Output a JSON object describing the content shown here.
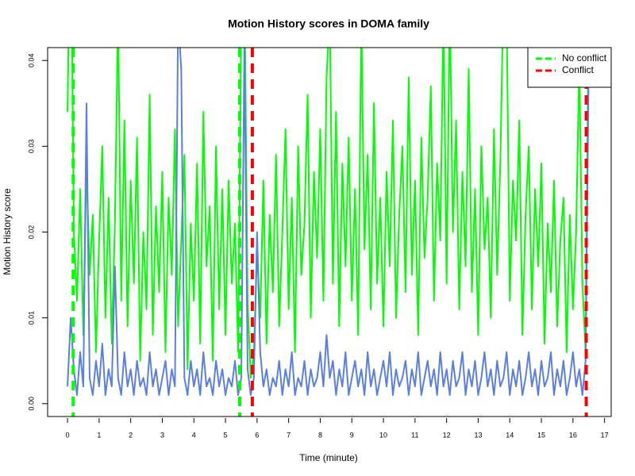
{
  "chart_data": {
    "type": "line",
    "title": "Motion History scores in DOMA family",
    "xlabel": "Time (minute)",
    "ylabel": "Motion History score",
    "x": [
      0,
      0.1,
      0.2,
      0.3,
      0.4,
      0.5,
      0.6,
      0.7,
      0.8,
      0.9,
      1,
      1.1,
      1.2,
      1.3,
      1.4,
      1.5,
      1.6,
      1.7,
      1.8,
      1.9,
      2,
      2.1,
      2.2,
      2.3,
      2.4,
      2.5,
      2.6,
      2.7,
      2.8,
      2.9,
      3,
      3.1,
      3.2,
      3.3,
      3.4,
      3.5,
      3.6,
      3.7,
      3.8,
      3.9,
      4,
      4.1,
      4.2,
      4.3,
      4.4,
      4.5,
      4.6,
      4.7,
      4.8,
      4.9,
      5,
      5.1,
      5.2,
      5.3,
      5.4,
      5.5,
      5.6,
      5.7,
      5.8,
      5.9,
      6,
      6.1,
      6.2,
      6.3,
      6.4,
      6.5,
      6.6,
      6.7,
      6.8,
      6.9,
      7,
      7.1,
      7.2,
      7.3,
      7.4,
      7.5,
      7.6,
      7.7,
      7.8,
      7.9,
      8,
      8.1,
      8.2,
      8.3,
      8.4,
      8.5,
      8.6,
      8.7,
      8.8,
      8.9,
      9,
      9.1,
      9.2,
      9.3,
      9.4,
      9.5,
      9.6,
      9.7,
      9.8,
      9.9,
      10,
      10.1,
      10.2,
      10.3,
      10.4,
      10.5,
      10.6,
      10.7,
      10.8,
      10.9,
      11,
      11.1,
      11.2,
      11.3,
      11.4,
      11.5,
      11.6,
      11.7,
      11.8,
      11.9,
      12,
      12.1,
      12.2,
      12.3,
      12.4,
      12.5,
      12.6,
      12.7,
      12.8,
      12.9,
      13,
      13.1,
      13.2,
      13.3,
      13.4,
      13.5,
      13.6,
      13.7,
      13.8,
      13.9,
      14,
      14.1,
      14.2,
      14.3,
      14.4,
      14.5,
      14.6,
      14.7,
      14.8,
      14.9,
      15,
      15.1,
      15.2,
      15.3,
      15.4,
      15.5,
      15.6,
      15.7,
      15.8,
      15.9,
      16,
      16.1,
      16.2,
      16.3,
      16.4,
      16.5
    ],
    "series": [
      {
        "color": "#00ff00",
        "values": [
          0.034,
          0.06,
          0.02,
          0.012,
          0.025,
          0.008,
          0.028,
          0.015,
          0.022,
          0.006,
          0.019,
          0.03,
          0.01,
          0.024,
          0.007,
          0.021,
          0.046,
          0.012,
          0.033,
          0.009,
          0.026,
          0.014,
          0.031,
          0.005,
          0.02,
          0.011,
          0.036,
          0.008,
          0.023,
          0.013,
          0.027,
          0.006,
          0.024,
          0.015,
          0.032,
          0.009,
          0.019,
          0.029,
          0.004,
          0.021,
          0.012,
          0.028,
          0.007,
          0.034,
          0.016,
          0.023,
          0.005,
          0.03,
          0.011,
          0.025,
          0.008,
          0.026,
          0.014,
          0.021,
          0.006,
          0.045,
          0.05,
          0.012,
          0.003,
          0.006,
          0.018,
          0.01,
          0.026,
          0.007,
          0.022,
          0.013,
          0.029,
          0.009,
          0.02,
          0.032,
          0.011,
          0.024,
          0.006,
          0.03,
          0.015,
          0.021,
          0.036,
          0.01,
          0.027,
          0.017,
          0.032,
          0.012,
          0.038,
          0.046,
          0.014,
          0.034,
          0.009,
          0.028,
          0.016,
          0.031,
          0.012,
          0.025,
          0.008,
          0.045,
          0.018,
          0.029,
          0.011,
          0.035,
          0.014,
          0.024,
          0.009,
          0.027,
          0.016,
          0.033,
          0.01,
          0.022,
          0.03,
          0.013,
          0.038,
          0.015,
          0.026,
          0.008,
          0.031,
          0.017,
          0.024,
          0.037,
          0.012,
          0.028,
          0.019,
          0.046,
          0.014,
          0.047,
          0.02,
          0.033,
          0.011,
          0.027,
          0.016,
          0.039,
          0.013,
          0.025,
          0.008,
          0.03,
          0.018,
          0.024,
          0.01,
          0.032,
          0.015,
          0.028,
          0.048,
          0.046,
          0.012,
          0.026,
          0.019,
          0.033,
          0.008,
          0.022,
          0.03,
          0.011,
          0.025,
          0.016,
          0.028,
          0.007,
          0.021,
          0.013,
          0.026,
          0.009,
          0.019,
          0.024,
          0.006,
          0.022,
          0.011,
          0.02,
          0.04,
          0.014,
          0.006,
          0.048
        ]
      },
      {
        "color": "#5b7fe0",
        "values": [
          0.002,
          0.01,
          0.004,
          0.001,
          0.006,
          0.002,
          0.035,
          0.003,
          0.001,
          0.005,
          0.002,
          0.007,
          0.001,
          0.004,
          0.002,
          0.016,
          0.003,
          0.001,
          0.006,
          0.002,
          0.004,
          0.001,
          0.005,
          0.002,
          0.003,
          0.001,
          0.006,
          0.002,
          0.004,
          0.001,
          0.003,
          0.005,
          0.001,
          0.004,
          0.002,
          0.045,
          0.039,
          0.003,
          0.001,
          0.005,
          0.002,
          0.004,
          0.001,
          0.006,
          0.002,
          0.003,
          0.001,
          0.005,
          0.002,
          0.004,
          0.001,
          0.003,
          0.002,
          0.005,
          0.001,
          0.003,
          0.042,
          0.004,
          0.001,
          0.003,
          0.02,
          0.006,
          0.002,
          0.004,
          0.001,
          0.003,
          0.002,
          0.005,
          0.001,
          0.004,
          0.002,
          0.006,
          0.001,
          0.003,
          0.002,
          0.005,
          0.001,
          0.004,
          0.002,
          0.003,
          0.006,
          0.002,
          0.008,
          0.003,
          0.005,
          0.001,
          0.004,
          0.002,
          0.006,
          0.001,
          0.003,
          0.005,
          0.002,
          0.004,
          0.001,
          0.006,
          0.002,
          0.004,
          0.001,
          0.003,
          0.005,
          0.002,
          0.006,
          0.001,
          0.004,
          0.002,
          0.003,
          0.005,
          0.001,
          0.004,
          0.002,
          0.006,
          0.001,
          0.003,
          0.005,
          0.002,
          0.004,
          0.001,
          0.006,
          0.002,
          0.004,
          0.001,
          0.005,
          0.002,
          0.003,
          0.006,
          0.001,
          0.004,
          0.002,
          0.005,
          0.001,
          0.003,
          0.006,
          0.002,
          0.004,
          0.001,
          0.005,
          0.002,
          0.003,
          0.006,
          0.001,
          0.004,
          0.002,
          0.005,
          0.001,
          0.003,
          0.006,
          0.002,
          0.004,
          0.001,
          0.005,
          0.002,
          0.003,
          0.006,
          0.001,
          0.004,
          0.002,
          0.005,
          0.001,
          0.003,
          0.006,
          0.002,
          0.004,
          0.001,
          0.005,
          0.04
        ]
      }
    ],
    "vlines": [
      {
        "name": "No conflict",
        "color": "#00ff00",
        "x": [
          0.18,
          5.45
        ]
      },
      {
        "name": "Conflict",
        "color": "#ff0000",
        "x": [
          5.85,
          16.42
        ]
      }
    ],
    "legend": "topright",
    "xlim": [
      -0.63,
      17.21
    ],
    "ylim": [
      -0.0015,
      0.0415
    ],
    "xticks": [
      0,
      1,
      2,
      3,
      4,
      5,
      6,
      7,
      8,
      9,
      10,
      11,
      12,
      13,
      14,
      15,
      16,
      17
    ],
    "yticks": [
      {
        "value": 0,
        "label": "0.00"
      },
      0.01,
      0.02,
      0.03,
      0.04
    ]
  }
}
